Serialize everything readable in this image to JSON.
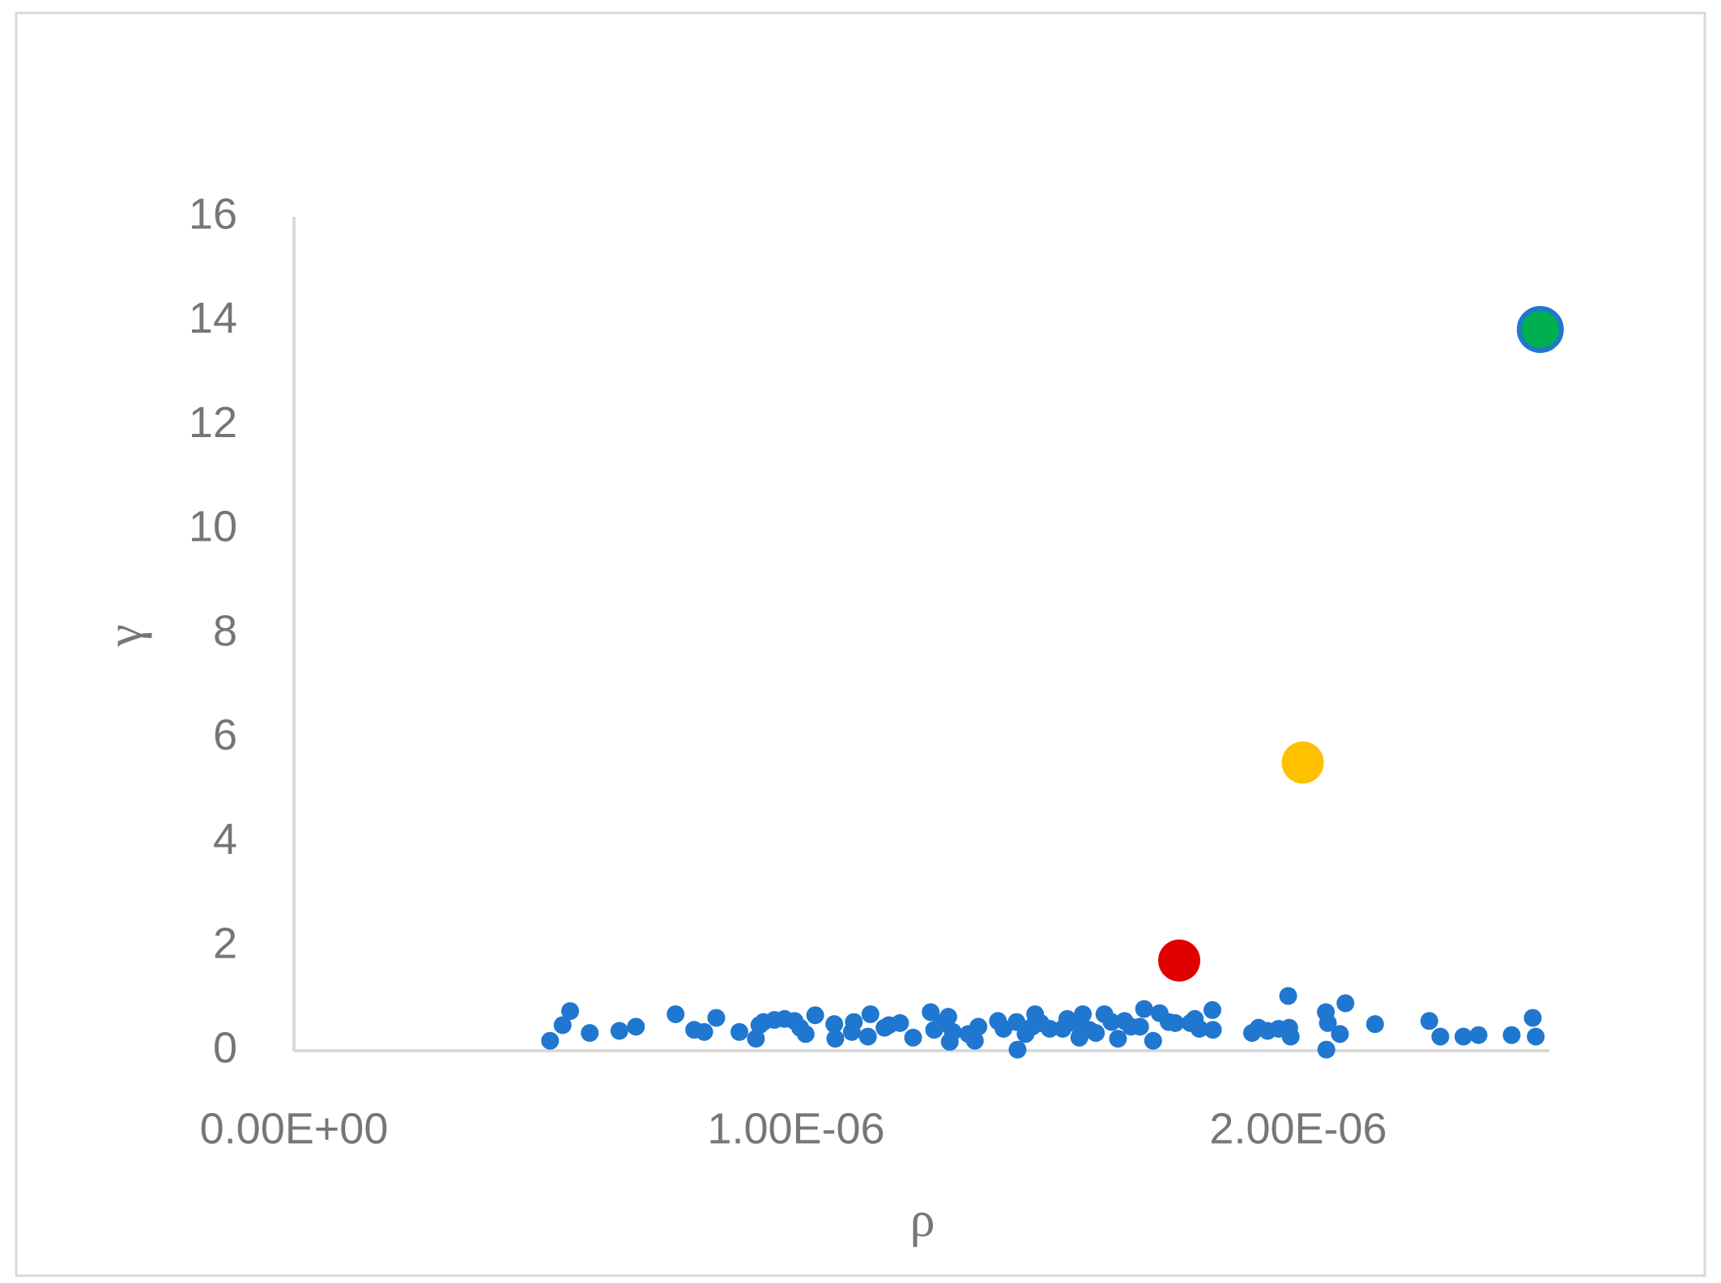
{
  "chart_data": {
    "type": "scatter",
    "xlabel": "ρ",
    "ylabel": "γ",
    "xlim": [
      0,
      2.5e-06
    ],
    "ylim": [
      0,
      16
    ],
    "xticks": [
      {
        "value": 0,
        "label": "0.00E+00"
      },
      {
        "value": 1e-06,
        "label": "1.00E-06"
      },
      {
        "value": 2e-06,
        "label": "2.00E-06"
      }
    ],
    "yticks": [
      0,
      2,
      4,
      6,
      8,
      10,
      12,
      14,
      16
    ],
    "grid": false,
    "series": [
      {
        "color": "#1f77d0",
        "size": "small",
        "x": [
          5.1e-07,
          5.35e-07,
          5.5e-07,
          5.89e-07,
          6.48e-07,
          6.81e-07,
          7.6e-07,
          7.97e-07,
          8.17e-07,
          8.41e-07,
          8.87e-07,
          9.2e-07,
          9.27e-07,
          9.35e-07,
          9.57e-07,
          9.77e-07,
          9.97e-07,
          1.008e-06,
          1.019e-06,
          1.038e-06,
          1.076e-06,
          1.078e-06,
          1.111e-06,
          1.115e-06,
          1.143e-06,
          1.148e-06,
          1.176e-06,
          1.185e-06,
          1.207e-06,
          1.233e-06,
          1.268e-06,
          1.275e-06,
          1.29e-06,
          1.303e-06,
          1.306e-06,
          1.312e-06,
          1.343e-06,
          1.356e-06,
          1.363e-06,
          1.402e-06,
          1.413e-06,
          1.439e-06,
          1.441e-06,
          1.457e-06,
          1.47e-06,
          1.476e-06,
          1.487e-06,
          1.505e-06,
          1.531e-06,
          1.54e-06,
          1.555e-06,
          1.564e-06,
          1.571e-06,
          1.584e-06,
          1.597e-06,
          1.614e-06,
          1.628e-06,
          1.641e-06,
          1.654e-06,
          1.667e-06,
          1.685e-06,
          1.693e-06,
          1.711e-06,
          1.724e-06,
          1.742e-06,
          1.755e-06,
          1.785e-06,
          1.794e-06,
          1.803e-06,
          1.829e-06,
          1.83e-06,
          1.908e-06,
          1.921e-06,
          1.939e-06,
          1.961e-06,
          1.98e-06,
          1.982e-06,
          1.985e-06,
          2.055e-06,
          2.059e-06,
          2.056e-06,
          2.083e-06,
          2.094e-06,
          2.153e-06,
          2.261e-06,
          2.283e-06,
          2.329e-06,
          2.359e-06,
          2.425e-06,
          2.467e-06,
          2.473e-06
        ],
        "values": [
          0.19,
          0.49,
          0.76,
          0.34,
          0.38,
          0.46,
          0.7,
          0.4,
          0.36,
          0.63,
          0.36,
          0.23,
          0.49,
          0.55,
          0.59,
          0.61,
          0.57,
          0.44,
          0.32,
          0.68,
          0.51,
          0.23,
          0.36,
          0.55,
          0.27,
          0.7,
          0.44,
          0.49,
          0.53,
          0.25,
          0.74,
          0.4,
          0.53,
          0.65,
          0.17,
          0.36,
          0.32,
          0.19,
          0.46,
          0.57,
          0.42,
          0.55,
          0.02,
          0.32,
          0.46,
          0.7,
          0.53,
          0.42,
          0.42,
          0.61,
          0.53,
          0.25,
          0.7,
          0.4,
          0.34,
          0.7,
          0.55,
          0.23,
          0.57,
          0.46,
          0.46,
          0.8,
          0.19,
          0.72,
          0.55,
          0.53,
          0.53,
          0.61,
          0.42,
          0.78,
          0.4,
          0.34,
          0.44,
          0.38,
          0.42,
          1.05,
          0.44,
          0.27,
          0.74,
          0.53,
          0.02,
          0.32,
          0.91,
          0.51,
          0.57,
          0.27,
          0.27,
          0.3,
          0.3,
          0.63,
          0.27
        ]
      },
      {
        "color": "#e00000",
        "size": "large",
        "x": [
          1.763e-06
        ],
        "values": [
          1.73
        ]
      },
      {
        "color": "#ffc000",
        "size": "large",
        "x": [
          2.009e-06
        ],
        "values": [
          5.53
        ]
      },
      {
        "color": "#00b050",
        "edgecolor": "#1f77d0",
        "size": "large",
        "x": [
          2.482e-06
        ],
        "values": [
          13.84
        ]
      }
    ]
  }
}
